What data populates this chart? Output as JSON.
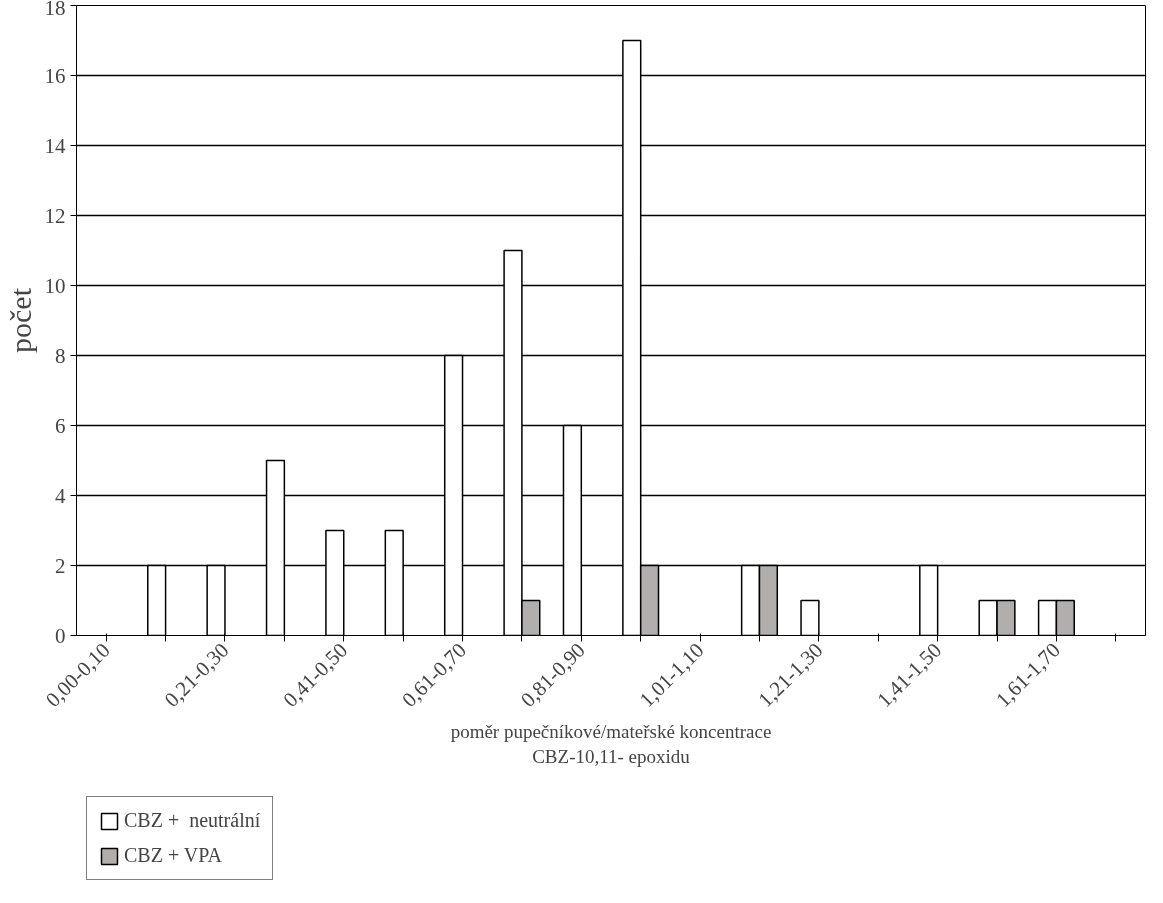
{
  "chart_data": {
    "type": "bar",
    "xlabel": "poměr pupečníkové/mateřské koncentrace\nCBZ-10,11- epoxidu",
    "ylabel": "počet",
    "categories": [
      "0,00-0,10",
      null,
      "0,21-0,30",
      null,
      "0,41-0,50",
      null,
      "0,61-0,70",
      null,
      "0,81-0,90",
      null,
      "1,01-1,10",
      null,
      "1,21-1,30",
      null,
      "1,41-1,50",
      null,
      "1,61-1,70",
      null
    ],
    "series": [
      {
        "name": "CBZ +  neutrální",
        "color": "#ffffff",
        "values": [
          0,
          2,
          2,
          5,
          3,
          3,
          8,
          11,
          6,
          17,
          0,
          2,
          1,
          0,
          2,
          1,
          1,
          0
        ]
      },
      {
        "name": "CBZ + VPA",
        "color": "#b2aeae",
        "values": [
          0,
          0,
          0,
          0,
          0,
          0,
          0,
          1,
          0,
          2,
          0,
          2,
          0,
          0,
          0,
          1,
          1,
          0
        ]
      }
    ],
    "ylim": [
      0,
      18
    ],
    "yticks": [
      0,
      2,
      4,
      6,
      8,
      10,
      12,
      14,
      16,
      18
    ],
    "grid": "y",
    "legend": "bottom left"
  }
}
